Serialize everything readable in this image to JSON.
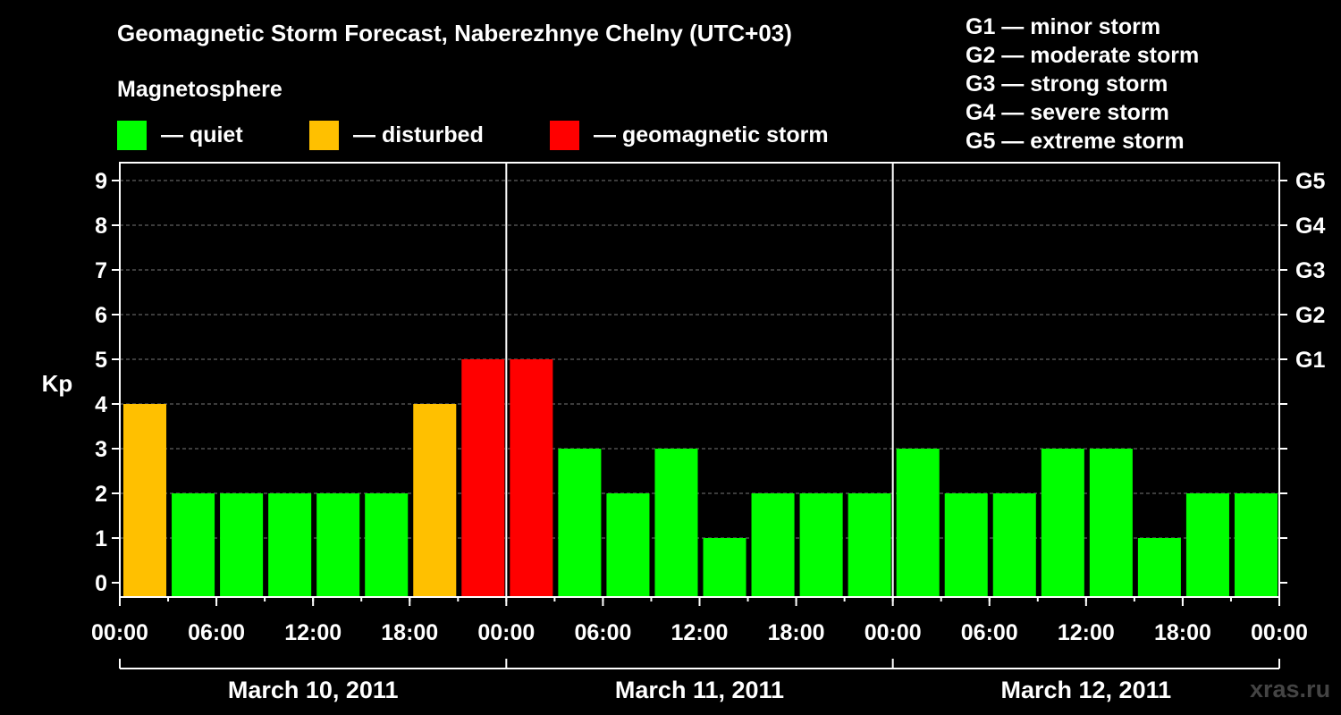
{
  "title": "Geomagnetic Storm Forecast, Naberezhnye Chelny (UTC+03)",
  "magnetosphere_label": "Magnetosphere",
  "legend": [
    {
      "label": "— quiet",
      "color": "#00ff00"
    },
    {
      "label": "— disturbed",
      "color": "#ffc000"
    },
    {
      "label": "— geomagnetic storm",
      "color": "#ff0000"
    }
  ],
  "g_scale": [
    "G1 — minor storm",
    "G2 — moderate storm",
    "G3 — strong storm",
    "G4 — severe storm",
    "G5 — extreme storm"
  ],
  "watermark": "xras.ru",
  "chart_data": {
    "type": "bar",
    "ylabel": "Kp",
    "ylim": [
      0,
      9
    ],
    "y_ticks": [
      "0",
      "1",
      "2",
      "3",
      "4",
      "5",
      "6",
      "7",
      "8",
      "9"
    ],
    "right_axis_labels": [
      {
        "kp": 5,
        "label": "G1"
      },
      {
        "kp": 6,
        "label": "G2"
      },
      {
        "kp": 7,
        "label": "G3"
      },
      {
        "kp": 8,
        "label": "G4"
      },
      {
        "kp": 9,
        "label": "G5"
      }
    ],
    "x_tick_labels": [
      "00:00",
      "06:00",
      "12:00",
      "18:00",
      "00:00",
      "06:00",
      "12:00",
      "18:00",
      "00:00",
      "06:00",
      "12:00",
      "18:00",
      "00:00"
    ],
    "days": [
      "March 10, 2011",
      "March 11, 2011",
      "March 12, 2011"
    ],
    "interval_hours": 3,
    "values": [
      4,
      2,
      2,
      2,
      2,
      2,
      4,
      5,
      5,
      3,
      2,
      3,
      1,
      2,
      2,
      2,
      3,
      2,
      2,
      3,
      3,
      1,
      2,
      2
    ],
    "colors": {
      "quiet": "#00ff00",
      "disturbed": "#ffc000",
      "storm": "#ff0000"
    },
    "grid": true
  }
}
